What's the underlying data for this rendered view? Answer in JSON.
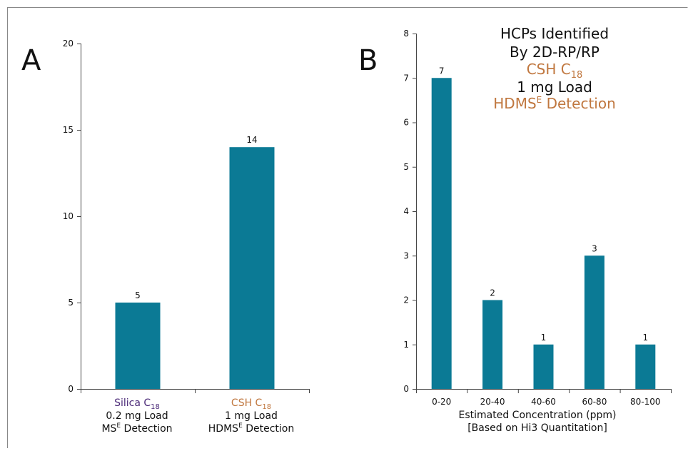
{
  "colors": {
    "bar": "#0b7a95",
    "axis": "#444444",
    "frame": "#888888",
    "text": "#111111",
    "purple": "#4b2a78",
    "orange": "#c0773f"
  },
  "chart_data": [
    {
      "type": "bar",
      "panel_label": "A",
      "categories": [
        {
          "pre": "Silica C",
          "sub": "18",
          "l2": "0.2 mg Load",
          "l3a": "MS",
          "sup": "E",
          "l3b": " Detection"
        },
        {
          "pre": "CSH C",
          "sub": "18",
          "l2": "1 mg Load",
          "l3a": "HDMS",
          "sup": "E",
          "l3b": " Detection"
        }
      ],
      "values": [
        5,
        14
      ],
      "data_labels": [
        "5",
        "14"
      ],
      "yticks": [
        "0",
        "5",
        "10",
        "15",
        "20"
      ],
      "ylim": [
        0,
        20
      ]
    },
    {
      "type": "bar",
      "panel_label": "B",
      "categories": [
        "0-20",
        "20-40",
        "40-60",
        "60-80",
        "80-100"
      ],
      "values": [
        7,
        2,
        1,
        3,
        1
      ],
      "data_labels": [
        "7",
        "2",
        "1",
        "3",
        "1"
      ],
      "yticks": [
        "0",
        "1",
        "2",
        "3",
        "4",
        "5",
        "6",
        "7",
        "8"
      ],
      "ylim": [
        0,
        8
      ],
      "xlabel": "Estimated Concentration (ppm)",
      "xlabel2": "[Based on Hi3 Quantitation]",
      "annotation": {
        "l1": "HCPs Identified",
        "l2": "By 2D-RP/RP",
        "l3a": "CSH C",
        "l3sub": "18",
        "l4": "1 mg Load",
        "l5a": "HDMS",
        "l5sup": "E",
        "l5b": " Detection"
      }
    }
  ]
}
